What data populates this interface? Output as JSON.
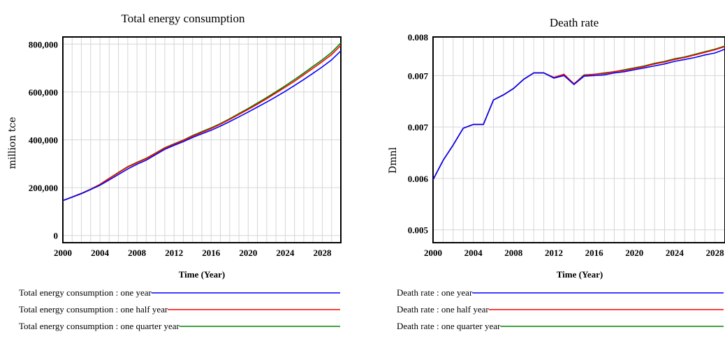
{
  "chart_data": [
    {
      "type": "line",
      "title": "Total energy consumption",
      "xlabel": "Time (Year)",
      "ylabel": "million tce",
      "xlim": [
        2000,
        2030
      ],
      "ylim": [
        -30000,
        830000
      ],
      "grid": true,
      "legend_position": "bottom",
      "x_ticks": [
        2000,
        2004,
        2008,
        2012,
        2016,
        2020,
        2024,
        2028
      ],
      "x_tick_labels": [
        "2000",
        "2004",
        "2008",
        "2012",
        "2016",
        "2020",
        "2024",
        "2028"
      ],
      "y_ticks": [
        0,
        200000,
        400000,
        600000,
        800000
      ],
      "y_tick_labels": [
        "0",
        "200,000",
        "400,000",
        "600,000",
        "800,000"
      ],
      "x": [
        2000,
        2001,
        2002,
        2003,
        2004,
        2005,
        2006,
        2007,
        2008,
        2009,
        2010,
        2011,
        2012,
        2013,
        2014,
        2015,
        2016,
        2017,
        2018,
        2019,
        2020,
        2021,
        2022,
        2023,
        2024,
        2025,
        2026,
        2027,
        2028,
        2029,
        2030
      ],
      "series": [
        {
          "name": "Total energy consumption : one year",
          "color": "#0000ff",
          "values": [
            146000,
            160000,
            175000,
            192000,
            210000,
            232000,
            255000,
            278000,
            298000,
            315000,
            338000,
            360000,
            377000,
            392000,
            410000,
            425000,
            440000,
            457000,
            476000,
            496000,
            516000,
            537000,
            558000,
            580000,
            603000,
            627000,
            652000,
            678000,
            705000,
            734000,
            772000
          ]
        },
        {
          "name": "Total energy consumption : one half year",
          "color": "#ff0000",
          "values": [
            146000,
            161000,
            176000,
            193000,
            213000,
            238000,
            262000,
            286000,
            304000,
            321000,
            343000,
            365000,
            381000,
            397000,
            415000,
            431000,
            447000,
            465000,
            485000,
            506000,
            527000,
            549000,
            572000,
            596000,
            620000,
            645000,
            672000,
            699000,
            727000,
            756000,
            795000
          ]
        },
        {
          "name": "Total energy consumption : one quarter year",
          "color": "#008000",
          "values": [
            146000,
            161000,
            176000,
            194000,
            214000,
            239000,
            264000,
            288000,
            306000,
            323000,
            345000,
            367000,
            383000,
            399000,
            418000,
            434000,
            450000,
            468000,
            488000,
            510000,
            531000,
            554000,
            577000,
            601000,
            626000,
            652000,
            679000,
            707000,
            735000,
            765000,
            805000
          ]
        }
      ]
    },
    {
      "type": "line",
      "title": "Death rate",
      "xlabel": "Time (Year)",
      "ylabel": "Dmnl",
      "xlim": [
        2000,
        2029
      ],
      "ylim": [
        0.0048,
        0.008
      ],
      "grid": true,
      "legend_position": "bottom",
      "x_ticks": [
        2000,
        2004,
        2008,
        2012,
        2016,
        2020,
        2024,
        2028
      ],
      "x_tick_labels": [
        "2000",
        "2004",
        "2008",
        "2012",
        "2016",
        "2020",
        "2024",
        "2028"
      ],
      "y_ticks": [
        0.005,
        0.0058,
        0.0066,
        0.0074,
        0.008
      ],
      "y_tick_labels": [
        "0.005",
        "0.006",
        "0.007",
        "0.007",
        "0.008"
      ],
      "x": [
        2000,
        2001,
        2002,
        2003,
        2004,
        2005,
        2006,
        2007,
        2008,
        2009,
        2010,
        2011,
        2012,
        2013,
        2014,
        2015,
        2016,
        2017,
        2018,
        2019,
        2020,
        2021,
        2022,
        2023,
        2024,
        2025,
        2026,
        2027,
        2028,
        2029
      ],
      "series": [
        {
          "name": "Death rate : one year",
          "color": "#0000ff",
          "values": [
            0.00578,
            0.00608,
            0.00632,
            0.00658,
            0.00664,
            0.00664,
            0.00702,
            0.0071,
            0.0072,
            0.00734,
            0.00744,
            0.00744,
            0.00736,
            0.0074,
            0.00726,
            0.00739,
            0.0074,
            0.00741,
            0.00744,
            0.00746,
            0.00749,
            0.00752,
            0.00755,
            0.00758,
            0.00762,
            0.00765,
            0.00768,
            0.00772,
            0.00775,
            0.00781
          ]
        },
        {
          "name": "Death rate : one half year",
          "color": "#ff0000",
          "values": [
            0.00578,
            0.00608,
            0.00632,
            0.00658,
            0.00664,
            0.00664,
            0.00702,
            0.0071,
            0.0072,
            0.00734,
            0.00744,
            0.00744,
            0.00737,
            0.00742,
            0.00727,
            0.0074,
            0.00742,
            0.00743,
            0.00746,
            0.00748,
            0.00751,
            0.00754,
            0.00758,
            0.00761,
            0.00765,
            0.00768,
            0.00772,
            0.00776,
            0.0078,
            0.00785
          ]
        },
        {
          "name": "Death rate : one quarter year",
          "color": "#008000",
          "values": [
            0.00578,
            0.00608,
            0.00632,
            0.00658,
            0.00664,
            0.00664,
            0.00702,
            0.0071,
            0.0072,
            0.00734,
            0.00744,
            0.00744,
            0.00737,
            0.00742,
            0.00727,
            0.00741,
            0.00742,
            0.00744,
            0.00746,
            0.00749,
            0.00752,
            0.00755,
            0.00759,
            0.00762,
            0.00766,
            0.00769,
            0.00773,
            0.00777,
            0.00781,
            0.00786
          ]
        }
      ]
    }
  ]
}
